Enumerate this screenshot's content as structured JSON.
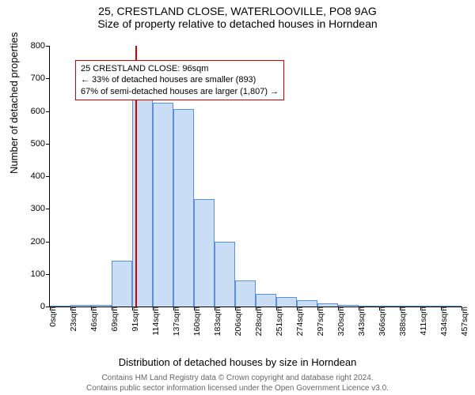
{
  "title_line1": "25, CRESTLAND CLOSE, WATERLOOVILLE, PO8 9AG",
  "title_line2": "Size of property relative to detached houses in Horndean",
  "ylabel": "Number of detached properties",
  "xlabel": "Distribution of detached houses by size in Horndean",
  "footer_line1": "Contains HM Land Registry data © Crown copyright and database right 2024.",
  "footer_line2": "Contains public sector information licensed under the Open Government Licence v3.0.",
  "chart": {
    "type": "histogram",
    "ymax": 800,
    "ytick_step": 100,
    "xticks": [
      "0sqm",
      "23sqm",
      "46sqm",
      "69sqm",
      "91sqm",
      "114sqm",
      "137sqm",
      "160sqm",
      "183sqm",
      "206sqm",
      "228sqm",
      "251sqm",
      "274sqm",
      "297sqm",
      "320sqm",
      "343sqm",
      "366sqm",
      "388sqm",
      "411sqm",
      "434sqm",
      "457sqm"
    ],
    "values": [
      0,
      5,
      5,
      140,
      635,
      625,
      605,
      330,
      200,
      80,
      40,
      30,
      20,
      10,
      5,
      0,
      0,
      0,
      0,
      0
    ],
    "bar_fill": "#c9ddf4",
    "bar_border": "#5b8fd6",
    "marker_value_x": 96,
    "x_min": 0,
    "x_max": 457,
    "marker_color": "#cc0000",
    "callout_border": "#cc0000",
    "callout": {
      "line1": "25 CRESTLAND CLOSE: 96sqm",
      "line2": "← 33% of detached houses are smaller (893)",
      "line3": "67% of semi-detached houses are larger (1,807) →"
    },
    "background_color": "#ffffff",
    "axis_color": "#000000",
    "tick_fontsize": 11,
    "label_fontsize": 13,
    "title_fontsize": 14
  }
}
